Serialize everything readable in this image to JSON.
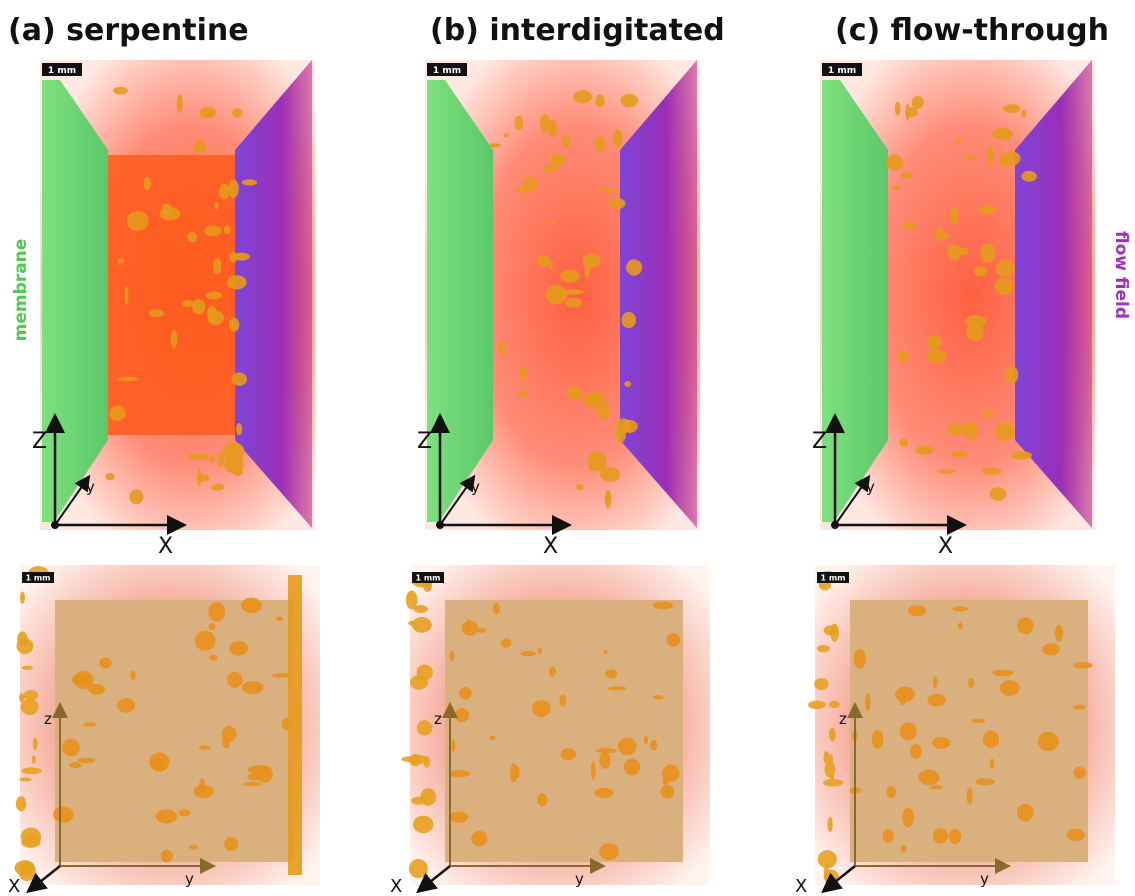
{
  "panel_titles": [
    "(a) serpentine",
    "(b) interdigitated",
    "(c) flow-through"
  ],
  "side_labels": {
    "left": "membrane",
    "right": "flow field"
  },
  "top_panels": [
    {
      "scale_bar": "1 mm",
      "axes": {
        "vertical": "Z",
        "depth": "y",
        "horizontal": "X"
      }
    },
    {
      "scale_bar": "1 mm",
      "axes": {
        "vertical": "Z",
        "depth": "y",
        "horizontal": "X"
      }
    },
    {
      "scale_bar": "1 mm",
      "axes": {
        "vertical": "Z",
        "depth": "y",
        "horizontal": "X"
      }
    }
  ],
  "bottom_panels": [
    {
      "scale_bar": "1 mm",
      "axes": {
        "vertical": "z",
        "horizontal": "y",
        "depth": "X"
      }
    },
    {
      "scale_bar": "1 mm",
      "axes": {
        "vertical": "z",
        "horizontal": "y",
        "depth": "X"
      }
    },
    {
      "scale_bar": "1 mm",
      "axes": {
        "vertical": "z",
        "horizontal": "y",
        "depth": "X"
      }
    }
  ]
}
